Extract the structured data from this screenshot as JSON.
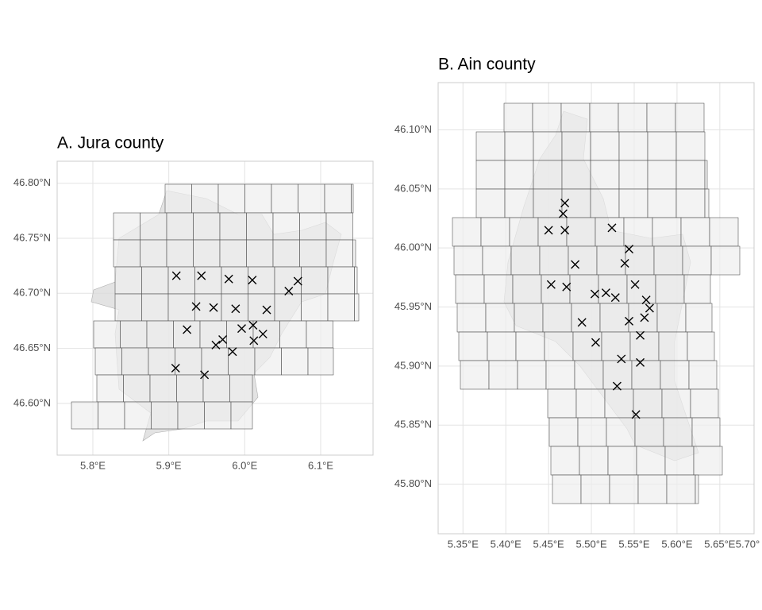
{
  "chart_data": [
    {
      "type": "scatter",
      "title": "A. Jura county",
      "marker": "x",
      "color": "#000000",
      "grid": true,
      "x": [
        5.91,
        5.943,
        5.979,
        6.01,
        6.07,
        6.058,
        5.936,
        5.959,
        5.988,
        6.029,
        5.924,
        5.996,
        6.011,
        6.024,
        5.962,
        5.971,
        5.984,
        6.012,
        5.909,
        5.947
      ],
      "values": [
        46.716,
        46.716,
        46.713,
        46.712,
        46.711,
        46.702,
        46.688,
        46.687,
        46.686,
        46.685,
        46.667,
        46.668,
        46.671,
        46.663,
        46.653,
        46.658,
        46.647,
        46.657,
        46.632,
        46.626
      ],
      "xlim": [
        5.753,
        6.169
      ],
      "ylim": [
        46.553,
        46.82
      ],
      "xticks": [
        {
          "value": 5.8,
          "label": "5.8°E"
        },
        {
          "value": 5.9,
          "label": "5.9°E"
        },
        {
          "value": 6.0,
          "label": "6.0°E"
        },
        {
          "value": 6.1,
          "label": "6.1°E"
        }
      ],
      "yticks": [
        {
          "value": 46.6,
          "label": "46.60°N"
        },
        {
          "value": 46.65,
          "label": "46.65°N"
        },
        {
          "value": 46.7,
          "label": "46.70°N"
        },
        {
          "value": 46.75,
          "label": "46.75°N"
        },
        {
          "value": 46.8,
          "label": "46.80°N"
        }
      ]
    },
    {
      "type": "scatter",
      "title": "B. Ain county",
      "marker": "x",
      "color": "#000000",
      "grid": true,
      "x": [
        5.469,
        5.467,
        5.469,
        5.45,
        5.524,
        5.544,
        5.481,
        5.539,
        5.453,
        5.471,
        5.551,
        5.504,
        5.517,
        5.528,
        5.564,
        5.568,
        5.489,
        5.544,
        5.562,
        5.505,
        5.557,
        5.535,
        5.557,
        5.53,
        5.552
      ],
      "values": [
        46.038,
        46.029,
        46.015,
        46.015,
        46.017,
        45.999,
        45.986,
        45.987,
        45.969,
        45.967,
        45.969,
        45.961,
        45.962,
        45.958,
        45.956,
        45.949,
        45.937,
        45.938,
        45.941,
        45.92,
        45.926,
        45.906,
        45.903,
        45.883,
        45.859
      ],
      "xlim": [
        5.321,
        5.69
      ],
      "ylim": [
        45.758,
        46.14
      ],
      "xticks": [
        {
          "value": 5.35,
          "label": "5.35°E"
        },
        {
          "value": 5.4,
          "label": "5.40°E"
        },
        {
          "value": 5.45,
          "label": "5.45°E"
        },
        {
          "value": 5.5,
          "label": "5.50°E"
        },
        {
          "value": 5.55,
          "label": "5.55°E"
        },
        {
          "value": 5.6,
          "label": "5.60°E"
        },
        {
          "value": 5.65,
          "label": "5.65°E"
        },
        {
          "value": 5.7,
          "label": "5.70°"
        }
      ],
      "yticks": [
        {
          "value": 45.8,
          "label": "45.80°N"
        },
        {
          "value": 45.85,
          "label": "45.85°N"
        },
        {
          "value": 45.9,
          "label": "45.90°N"
        },
        {
          "value": 45.95,
          "label": "45.95°N"
        },
        {
          "value": 46.0,
          "label": "46.00°N"
        },
        {
          "value": 46.05,
          "label": "46.05°N"
        },
        {
          "value": 46.1,
          "label": "46.10°N"
        }
      ]
    }
  ]
}
